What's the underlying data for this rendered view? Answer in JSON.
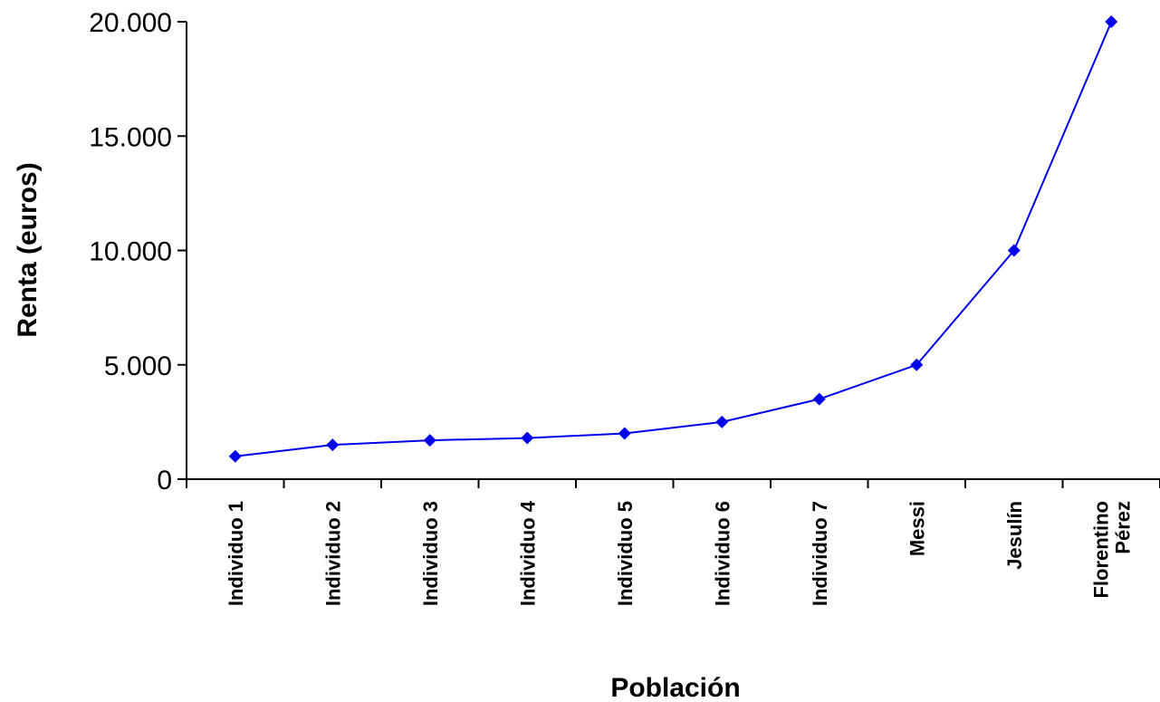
{
  "chart_data": {
    "type": "line",
    "xlabel": "Población",
    "ylabel": "Renta (euros)",
    "categories": [
      "Individuo 1",
      "Individuo 2",
      "Individuo 3",
      "Individuo 4",
      "Individuo 5",
      "Individuo 6",
      "Individuo 7",
      "Messi",
      "Jesulín",
      "Florentino Pérez"
    ],
    "category_lines": [
      [
        "Individuo 1"
      ],
      [
        "Individuo 2"
      ],
      [
        "Individuo 3"
      ],
      [
        "Individuo 4"
      ],
      [
        "Individuo 5"
      ],
      [
        "Individuo 6"
      ],
      [
        "Individuo 7"
      ],
      [
        "Messi"
      ],
      [
        "Jesulín"
      ],
      [
        "Florentino",
        "Pérez"
      ]
    ],
    "series": [
      {
        "values": [
          1000,
          1500,
          1700,
          1800,
          2000,
          2500,
          3500,
          5000,
          10000,
          20000
        ],
        "color": "#0000ee"
      }
    ],
    "ylim": [
      0,
      20000
    ],
    "yticks": [
      0,
      5000,
      10000,
      15000,
      20000
    ],
    "ytick_labels": [
      "0",
      "5.000",
      "10.000",
      "15.000",
      "20.000"
    ],
    "grid": false,
    "legend": "none",
    "marker": "diamond"
  }
}
